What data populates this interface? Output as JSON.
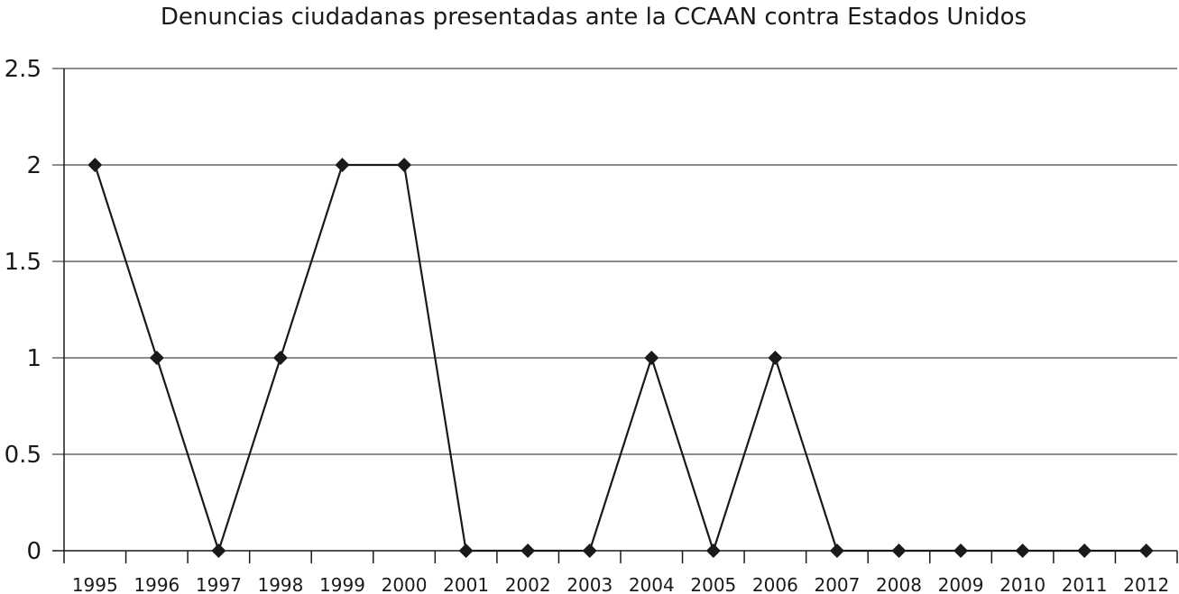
{
  "chart_data": {
    "type": "line",
    "title": "Denuncias ciudadanas presentadas ante la CCAAN contra Estados Unidos",
    "xlabel": "",
    "ylabel": "",
    "categories": [
      "1995",
      "1996",
      "1997",
      "1998",
      "1999",
      "2000",
      "2001",
      "2002",
      "2003",
      "2004",
      "2005",
      "2006",
      "2007",
      "2008",
      "2009",
      "2010",
      "2011",
      "2012"
    ],
    "series": [
      {
        "values": [
          2,
          1,
          0,
          1,
          2,
          2,
          0,
          0,
          0,
          1,
          0,
          1,
          0,
          0,
          0,
          0,
          0,
          0
        ]
      }
    ],
    "ylim": [
      0,
      2.5
    ],
    "yticks": [
      "0",
      "0.5",
      "1",
      "1.5",
      "2",
      "2.5"
    ],
    "grid": true,
    "legend": "none",
    "marker": "diamond",
    "color": "#1a1a1a"
  }
}
